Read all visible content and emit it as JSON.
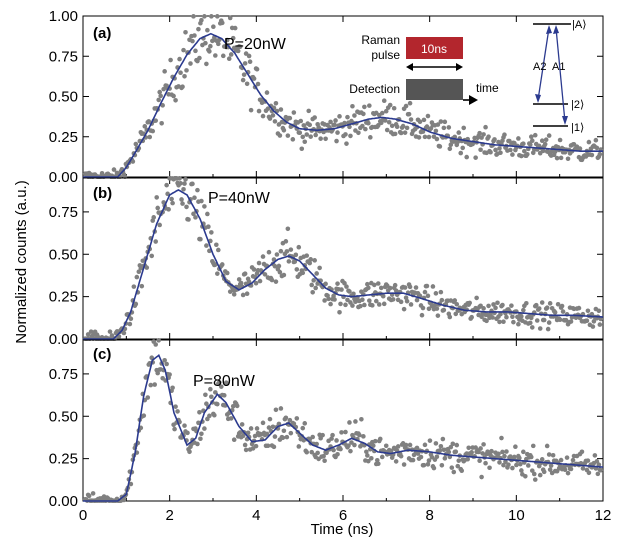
{
  "colors": {
    "data_points": "#808080",
    "fit_line": "#2b3a8f",
    "raman_pulse": "#b3262d",
    "detection_box": "#555555",
    "transition_arrows": "#2b3a8f"
  },
  "inset": {
    "raman_label_line1": "Raman",
    "raman_label_line2": "pulse",
    "pulse_duration": "10ns",
    "detection_label": "Detection",
    "time_label": "time",
    "level_A": "|A⟩",
    "level_2": "|2⟩",
    "level_1": "|1⟩",
    "transition_A2": "A2",
    "transition_A1": "A1"
  },
  "chart_data": {
    "type": "scatter",
    "xlabel": "Time (ns)",
    "ylabel": "Normalized counts (a.u.)",
    "xlim": [
      0,
      12
    ],
    "x_ticks": [
      "0",
      "2",
      "4",
      "6",
      "8",
      "10",
      "12"
    ],
    "panels": [
      {
        "label": "(a)",
        "power": "P=20nW",
        "ylim": [
          0,
          1.0
        ],
        "y_ticks": [
          "0.00",
          "0.25",
          "0.50",
          "0.75",
          "1.00"
        ],
        "fit_curve": {
          "x": [
            0,
            0.8,
            1.0,
            1.2,
            1.5,
            1.8,
            2.1,
            2.4,
            2.7,
            2.95,
            3.2,
            3.5,
            3.8,
            4.1,
            4.4,
            4.7,
            5.0,
            5.4,
            5.8,
            6.2,
            6.6,
            6.9,
            7.2,
            7.6,
            8.0,
            8.5,
            9.0,
            9.5,
            10.0,
            10.5,
            11.0,
            11.5,
            12.0
          ],
          "y": [
            0,
            0.0,
            0.06,
            0.15,
            0.29,
            0.46,
            0.62,
            0.76,
            0.86,
            0.89,
            0.86,
            0.77,
            0.64,
            0.51,
            0.41,
            0.34,
            0.3,
            0.29,
            0.3,
            0.33,
            0.36,
            0.37,
            0.36,
            0.33,
            0.28,
            0.24,
            0.22,
            0.2,
            0.19,
            0.18,
            0.17,
            0.16,
            0.16
          ]
        }
      },
      {
        "label": "(b)",
        "power": "P=40nW",
        "ylim": [
          0,
          0.95
        ],
        "y_ticks": [
          "0.00",
          "0.25",
          "0.50",
          "0.75"
        ],
        "fit_curve": {
          "x": [
            0,
            0.7,
            0.9,
            1.1,
            1.4,
            1.7,
            2.0,
            2.2,
            2.4,
            2.7,
            3.0,
            3.3,
            3.6,
            3.9,
            4.2,
            4.5,
            4.75,
            5.0,
            5.3,
            5.6,
            5.9,
            6.2,
            6.6,
            7.0,
            7.4,
            7.8,
            8.3,
            8.8,
            9.3,
            9.8,
            10.3,
            10.8,
            11.3,
            12.0
          ],
          "y": [
            0,
            0.0,
            0.05,
            0.16,
            0.42,
            0.68,
            0.85,
            0.88,
            0.85,
            0.71,
            0.5,
            0.34,
            0.29,
            0.33,
            0.41,
            0.47,
            0.49,
            0.46,
            0.38,
            0.3,
            0.26,
            0.25,
            0.26,
            0.27,
            0.27,
            0.24,
            0.2,
            0.17,
            0.16,
            0.16,
            0.15,
            0.14,
            0.14,
            0.13
          ]
        }
      },
      {
        "label": "(c)",
        "power": "P=80nW",
        "ylim": [
          0,
          0.95
        ],
        "y_ticks": [
          "0.00",
          "0.25",
          "0.50",
          "0.75"
        ],
        "fit_curve": {
          "x": [
            0,
            0.8,
            1.0,
            1.2,
            1.4,
            1.6,
            1.75,
            1.9,
            2.1,
            2.4,
            2.6,
            2.8,
            3.1,
            3.3,
            3.6,
            3.9,
            4.2,
            4.5,
            4.75,
            5.0,
            5.3,
            5.6,
            5.9,
            6.2,
            6.5,
            6.8,
            7.1,
            7.5,
            8.0,
            8.5,
            9.0,
            9.5,
            10.0,
            10.5,
            11.0,
            11.5,
            12.0
          ],
          "y": [
            0,
            0.0,
            0.04,
            0.28,
            0.62,
            0.83,
            0.86,
            0.77,
            0.52,
            0.33,
            0.37,
            0.52,
            0.63,
            0.58,
            0.44,
            0.35,
            0.36,
            0.44,
            0.46,
            0.4,
            0.33,
            0.3,
            0.33,
            0.37,
            0.34,
            0.29,
            0.28,
            0.3,
            0.29,
            0.27,
            0.26,
            0.25,
            0.24,
            0.23,
            0.22,
            0.21,
            0.2
          ]
        }
      }
    ]
  }
}
